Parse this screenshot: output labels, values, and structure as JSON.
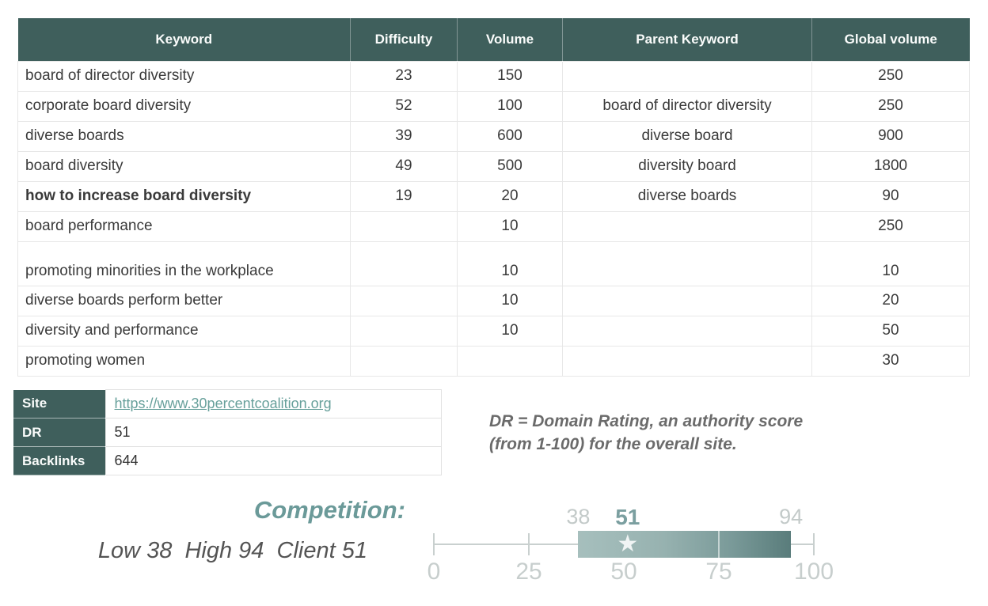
{
  "colors": {
    "header_bg": "#3f5f5c",
    "link": "#67a09b",
    "competition_accent": "#6b9a99",
    "bar_gradient_start": "#a6bfbd",
    "bar_gradient_end": "#597c7b",
    "axis_gray": "#c9d0cf"
  },
  "keyword_table": {
    "headers": {
      "keyword": "Keyword",
      "difficulty": "Difficulty",
      "volume": "Volume",
      "parent": "Parent Keyword",
      "global": "Global volume"
    },
    "rows": [
      {
        "keyword": "board of director diversity",
        "difficulty": "23",
        "volume": "150",
        "parent": "",
        "global": "250",
        "bold": false,
        "tall": false
      },
      {
        "keyword": "corporate board diversity",
        "difficulty": "52",
        "volume": "100",
        "parent": "board of director diversity",
        "global": "250",
        "bold": false,
        "tall": false
      },
      {
        "keyword": "diverse boards",
        "difficulty": "39",
        "volume": "600",
        "parent": "diverse board",
        "global": "900",
        "bold": false,
        "tall": false
      },
      {
        "keyword": "board diversity",
        "difficulty": "49",
        "volume": "500",
        "parent": "diversity board",
        "global": "1800",
        "bold": false,
        "tall": false
      },
      {
        "keyword": "how to increase board diversity",
        "difficulty": "19",
        "volume": "20",
        "parent": "diverse boards",
        "global": "90",
        "bold": true,
        "tall": false
      },
      {
        "keyword": "board performance",
        "difficulty": "",
        "volume": "10",
        "parent": "",
        "global": "250",
        "bold": false,
        "tall": false
      },
      {
        "keyword": "promoting minorities in the workplace",
        "difficulty": "",
        "volume": "10",
        "parent": "",
        "global": "10",
        "bold": false,
        "tall": true
      },
      {
        "keyword": "diverse boards perform better",
        "difficulty": "",
        "volume": "10",
        "parent": "",
        "global": "20",
        "bold": false,
        "tall": false
      },
      {
        "keyword": "diversity and performance",
        "difficulty": "",
        "volume": "10",
        "parent": "",
        "global": "50",
        "bold": false,
        "tall": false
      },
      {
        "keyword": "promoting women",
        "difficulty": "",
        "volume": "",
        "parent": "",
        "global": "30",
        "bold": false,
        "tall": false
      }
    ]
  },
  "site_table": {
    "rows": [
      {
        "label": "Site",
        "value": "https://www.30percentcoalition.org",
        "link": true
      },
      {
        "label": "DR",
        "value": "51",
        "link": false
      },
      {
        "label": "Backlinks",
        "value": "644",
        "link": false
      }
    ]
  },
  "dr_note": {
    "line1": "DR = Domain Rating, an authority score",
    "line2": "(from 1-100) for the overall site."
  },
  "competition": {
    "title": "Competition:",
    "summary": "Low 38  High 94  Client 51",
    "low": 38,
    "high": 94,
    "client": 51,
    "divider": 75,
    "scale_min": 0,
    "scale_max": 100,
    "low_label": "38",
    "client_label": "51",
    "high_label": "94",
    "ticks": [
      "0",
      "25",
      "50",
      "75",
      "100"
    ],
    "star_glyph": "★"
  }
}
